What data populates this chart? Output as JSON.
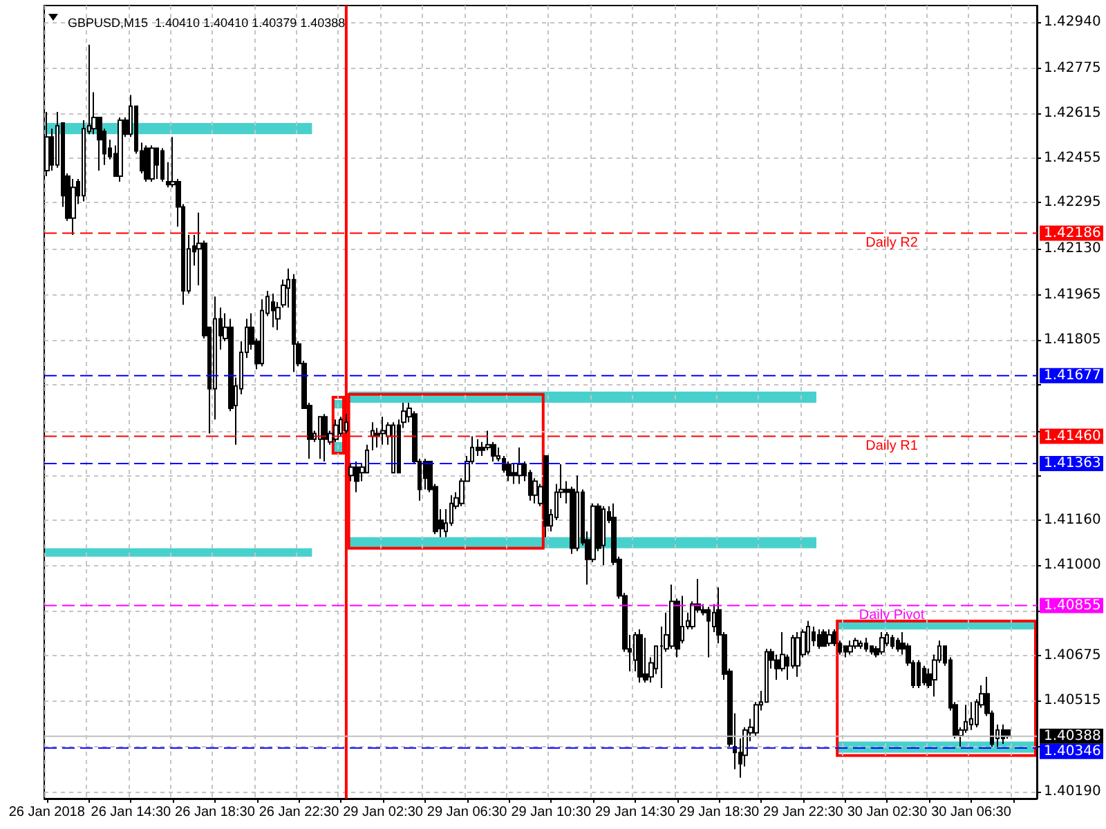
{
  "chart_data": {
    "type": "candlestick",
    "title": "GBPUSD,M15  1.40410 1.40410 1.40379 1.40388",
    "categories": [
      "26 Jan 2018",
      null,
      null,
      null,
      null,
      null,
      null,
      null,
      null,
      null,
      null,
      null,
      null,
      null,
      null,
      null,
      "26 Jan 14:30",
      null,
      null,
      null,
      null,
      null,
      null,
      null,
      null,
      null,
      null,
      null,
      null,
      null,
      null,
      null,
      "26 Jan 18:30",
      null,
      null,
      null,
      null,
      null,
      null,
      null,
      null,
      null,
      null,
      null,
      null,
      null,
      null,
      null,
      "26 Jan 22:30",
      null,
      null,
      null,
      null,
      null,
      null,
      null,
      null,
      null,
      null,
      null,
      null,
      null,
      null,
      null,
      "29 Jan 02:30",
      null,
      null,
      null,
      null,
      null,
      null,
      null,
      null,
      null,
      null,
      null,
      null,
      null,
      null,
      null,
      "29 Jan 06:30",
      null,
      null,
      null,
      null,
      null,
      null,
      null,
      null,
      null,
      null,
      null,
      null,
      null,
      null,
      null,
      "29 Jan 10:30",
      null,
      null,
      null,
      null,
      null,
      null,
      null,
      null,
      null,
      null,
      null,
      null,
      null,
      null,
      null,
      "29 Jan 14:30",
      null,
      null,
      null,
      null,
      null,
      null,
      null,
      null,
      null,
      null,
      null,
      null,
      null,
      null,
      null,
      "29 Jan 18:30",
      null,
      null,
      null,
      null,
      null,
      null,
      null,
      null,
      null,
      null,
      null,
      null,
      null,
      null,
      null,
      "29 Jan 22:30",
      null,
      null,
      null,
      null,
      null,
      null,
      null,
      null,
      null,
      null,
      null,
      null,
      null,
      null,
      null,
      "30 Jan 02:30",
      null,
      null,
      null,
      null,
      null,
      null,
      null,
      null,
      null,
      null,
      null,
      null,
      null,
      null,
      null,
      "30 Jan 06:30",
      null,
      null,
      null,
      null,
      null,
      null,
      null,
      null,
      null,
      null,
      null,
      null
    ],
    "series": [
      {
        "type": "bar",
        "color": "#ff0000",
        "values": [
          null,
          null,
          null,
          null,
          null,
          null,
          null,
          null,
          null,
          null,
          null,
          null,
          null,
          null,
          null,
          null,
          null,
          null,
          null,
          null,
          null,
          null,
          null,
          null,
          null,
          null,
          null,
          null,
          null,
          null,
          null,
          null,
          null,
          null,
          null,
          null,
          null,
          null,
          null,
          null,
          null,
          null,
          null,
          null,
          null,
          null,
          null,
          null,
          null,
          null,
          null,
          null,
          null,
          null,
          null,
          null,
          null,
          0.02835,
          null,
          null,
          null,
          null,
          null,
          null,
          null,
          null,
          null,
          null,
          null,
          null,
          null,
          null,
          null,
          null,
          null,
          null,
          null,
          null,
          null,
          null,
          null,
          null,
          null,
          null,
          null,
          null,
          null,
          null,
          null,
          null,
          null,
          null,
          null,
          null,
          null,
          null,
          null,
          null,
          null,
          null,
          null,
          null,
          null,
          null,
          null,
          null,
          null,
          null,
          null,
          null,
          null,
          null,
          null,
          null,
          null,
          null,
          null,
          null,
          null,
          null,
          null,
          null,
          null,
          null,
          null,
          null,
          null,
          null,
          null,
          null,
          null,
          null,
          null,
          null,
          null,
          null,
          null,
          null,
          null,
          null,
          null,
          null,
          null,
          null,
          null,
          null,
          null,
          null,
          null,
          null,
          null,
          null,
          null,
          null,
          null,
          null,
          null,
          null,
          null,
          null,
          null,
          null,
          null,
          null,
          null,
          null,
          null,
          null,
          null,
          null,
          null,
          null,
          null,
          null,
          null,
          null,
          null,
          null,
          null,
          null,
          null,
          null,
          null,
          null,
          null,
          null,
          null,
          null,
          null
        ],
        "base": [
          null,
          null,
          null,
          null,
          null,
          null,
          null,
          null,
          null,
          null,
          null,
          null,
          null,
          null,
          null,
          null,
          null,
          null,
          null,
          null,
          null,
          null,
          null,
          null,
          null,
          null,
          null,
          null,
          null,
          null,
          null,
          null,
          null,
          null,
          null,
          null,
          null,
          null,
          null,
          null,
          null,
          null,
          null,
          null,
          null,
          null,
          null,
          null,
          null,
          null,
          null,
          null,
          null,
          null,
          null,
          null,
          null,
          1.40165,
          null,
          null,
          null,
          null,
          null,
          null,
          null,
          null,
          null,
          null,
          null,
          null,
          null,
          null,
          null,
          null,
          null,
          null,
          null,
          null,
          null,
          null,
          null,
          null,
          null,
          null,
          null,
          null,
          null,
          null,
          null,
          null,
          null,
          null,
          null,
          null,
          null,
          null,
          null,
          null,
          null,
          null,
          null,
          null,
          null,
          null,
          null,
          null,
          null,
          null,
          null,
          null,
          null,
          null,
          null,
          null,
          null,
          null,
          null,
          null,
          null,
          null,
          null,
          null,
          null,
          null,
          null,
          null,
          null,
          null,
          null,
          null,
          null,
          null,
          null,
          null,
          null,
          null,
          null,
          null,
          null,
          null,
          null,
          null,
          null,
          null,
          null,
          null,
          null,
          null,
          null,
          null,
          null,
          null,
          null,
          null,
          null,
          null,
          null,
          null,
          null,
          null,
          null,
          null,
          null,
          null,
          null,
          null,
          null,
          null,
          null,
          null,
          null,
          null,
          null,
          null,
          null,
          null,
          null,
          null,
          null,
          null,
          null,
          null,
          null,
          null,
          null,
          null,
          null,
          null,
          null
        ]
      },
      {
        "color": "#000000",
        "ohlc": [
          [
            1.4241,
            1.4262,
            1.4239,
            1.4253
          ],
          [
            1.4253,
            1.4256,
            1.4241,
            1.4243
          ],
          [
            1.4243,
            1.4262,
            1.4242,
            1.4257
          ],
          [
            1.4258,
            1.4258,
            1.4228,
            1.4232
          ],
          [
            1.4239,
            1.424,
            1.4223,
            1.4224
          ],
          [
            1.4224,
            1.4238,
            1.4218,
            1.4235
          ],
          [
            1.4237,
            1.4238,
            1.4229,
            1.4232
          ],
          [
            1.4232,
            1.4259,
            1.423,
            1.4256
          ],
          [
            1.4255,
            1.4286,
            1.4254,
            1.4257
          ],
          [
            1.4256,
            1.4269,
            1.4254,
            1.426
          ],
          [
            1.426,
            1.426,
            1.4241,
            1.4252
          ],
          [
            1.4255,
            1.4256,
            1.4243,
            1.4247
          ],
          [
            1.4249,
            1.4252,
            1.4245,
            1.4246
          ],
          [
            1.4247,
            1.425,
            1.4239,
            1.4239
          ],
          [
            1.4239,
            1.426,
            1.4237,
            1.4259
          ],
          [
            1.4259,
            1.426,
            1.4253,
            1.4254
          ],
          [
            1.4254,
            1.4268,
            1.4253,
            1.4264
          ],
          [
            1.4264,
            1.4264,
            1.4247,
            1.4248
          ],
          [
            1.4248,
            1.4251,
            1.424,
            1.4241
          ],
          [
            1.4249,
            1.425,
            1.4237,
            1.4238
          ],
          [
            1.4238,
            1.425,
            1.4237,
            1.4249
          ],
          [
            1.4249,
            1.4249,
            1.4238,
            1.4243
          ],
          [
            1.4248,
            1.4249,
            1.4237,
            1.4238
          ],
          [
            1.4237,
            1.4244,
            1.4235,
            1.4236
          ],
          [
            1.4236,
            1.4253,
            1.4235,
            1.4237
          ],
          [
            1.4237,
            1.4238,
            1.4221,
            1.4228
          ],
          [
            1.4228,
            1.4229,
            1.4193,
            1.4198
          ],
          [
            1.4198,
            1.4218,
            1.4197,
            1.4213
          ],
          [
            1.4214,
            1.4218,
            1.4207,
            1.4212
          ],
          [
            1.4213,
            1.4226,
            1.42,
            1.4215
          ],
          [
            1.4215,
            1.4216,
            1.4181,
            1.4182
          ],
          [
            1.4185,
            1.4185,
            1.4147,
            1.4163
          ],
          [
            1.4163,
            1.4196,
            1.4152,
            1.4188
          ],
          [
            1.4188,
            1.4192,
            1.4177,
            1.4182
          ],
          [
            1.4181,
            1.419,
            1.418,
            1.4185
          ],
          [
            1.4185,
            1.4188,
            1.4155,
            1.4156
          ],
          [
            1.4157,
            1.4167,
            1.4143,
            1.4164
          ],
          [
            1.4163,
            1.418,
            1.4161,
            1.4176
          ],
          [
            1.4176,
            1.4188,
            1.4174,
            1.4185
          ],
          [
            1.4185,
            1.419,
            1.4177,
            1.4179
          ],
          [
            1.418,
            1.4181,
            1.417,
            1.4172
          ],
          [
            1.4172,
            1.4195,
            1.4171,
            1.4191
          ],
          [
            1.419,
            1.4198,
            1.4189,
            1.4196
          ],
          [
            1.4194,
            1.4197,
            1.4185,
            1.4191
          ],
          [
            1.4188,
            1.4194,
            1.4184,
            1.4192
          ],
          [
            1.4193,
            1.4202,
            1.4192,
            1.42
          ],
          [
            1.4199,
            1.4206,
            1.4192,
            1.4202
          ],
          [
            1.4202,
            1.4204,
            1.4169,
            1.4179
          ],
          [
            1.4179,
            1.418,
            1.4171,
            1.4172
          ],
          [
            1.4172,
            1.4173,
            1.4156,
            1.4156
          ],
          [
            1.4157,
            1.4158,
            1.4138,
            1.4145
          ],
          [
            1.4145,
            1.4148,
            1.4144,
            1.4147
          ],
          [
            1.4145,
            1.4153,
            1.4138,
            1.4153
          ],
          [
            1.4153,
            1.4154,
            1.4137,
            1.4145
          ],
          [
            1.4144,
            1.4148,
            1.4143,
            1.4147
          ],
          [
            1.4145,
            1.4152,
            1.4144,
            1.415
          ],
          [
            1.4147,
            1.4153,
            1.4146,
            1.4152
          ],
          [
            1.4148,
            1.4154,
            1.4147,
            1.4151
          ],
          [
            1.4132,
            1.4136,
            1.413,
            1.4135
          ],
          [
            1.4135,
            1.4137,
            1.4126,
            1.413
          ],
          [
            1.4133,
            1.4136,
            1.413,
            1.4135
          ],
          [
            1.4133,
            1.4143,
            1.4133,
            1.4141
          ],
          [
            1.4146,
            1.4151,
            1.4141,
            1.4148
          ],
          [
            1.4147,
            1.4149,
            1.4142,
            1.4146
          ],
          [
            1.4147,
            1.4153,
            1.4143,
            1.4148
          ],
          [
            1.4146,
            1.4151,
            1.4143,
            1.415
          ],
          [
            1.4133,
            1.4151,
            1.4133,
            1.415
          ],
          [
            1.415,
            1.4152,
            1.4133,
            1.4133
          ],
          [
            1.4151,
            1.4158,
            1.4149,
            1.4155
          ],
          [
            1.4153,
            1.4158,
            1.4151,
            1.4156
          ],
          [
            1.4154,
            1.4155,
            1.4136,
            1.4137
          ],
          [
            1.4137,
            1.4138,
            1.4123,
            1.4127
          ],
          [
            1.4137,
            1.4138,
            1.4127,
            1.4131
          ],
          [
            1.4137,
            1.4137,
            1.4126,
            1.4127
          ],
          [
            1.4128,
            1.4129,
            1.4111,
            1.4112
          ],
          [
            1.4116,
            1.412,
            1.411,
            1.4113
          ],
          [
            1.4112,
            1.412,
            1.411,
            1.4115
          ],
          [
            1.4115,
            1.4125,
            1.4114,
            1.4122
          ],
          [
            1.4121,
            1.4126,
            1.412,
            1.4124
          ],
          [
            1.4122,
            1.4131,
            1.4121,
            1.413
          ],
          [
            1.413,
            1.4139,
            1.413,
            1.4137
          ],
          [
            1.4137,
            1.4146,
            1.4136,
            1.4142
          ],
          [
            1.4142,
            1.4145,
            1.4139,
            1.4141
          ],
          [
            1.4142,
            1.4144,
            1.4139,
            1.4141
          ],
          [
            1.4142,
            1.4148,
            1.4141,
            1.4143
          ],
          [
            1.4143,
            1.4144,
            1.4137,
            1.4139
          ],
          [
            1.4138,
            1.4142,
            1.4137,
            1.4139
          ],
          [
            1.4138,
            1.4139,
            1.4133,
            1.4134
          ],
          [
            1.4136,
            1.4137,
            1.413,
            1.4132
          ],
          [
            1.4133,
            1.4136,
            1.4129,
            1.4132
          ],
          [
            1.4132,
            1.4142,
            1.4129,
            1.4136
          ],
          [
            1.4136,
            1.4137,
            1.413,
            1.4132
          ],
          [
            1.4133,
            1.4134,
            1.4123,
            1.4125
          ],
          [
            1.4125,
            1.4131,
            1.4122,
            1.413
          ],
          [
            1.4122,
            1.4129,
            1.4121,
            1.4128
          ],
          [
            1.4139,
            1.4139,
            1.411,
            1.4114
          ],
          [
            1.4114,
            1.412,
            1.4112,
            1.4118
          ],
          [
            1.4117,
            1.4129,
            1.4116,
            1.4126
          ],
          [
            1.4126,
            1.4136,
            1.4124,
            1.4127
          ],
          [
            1.4127,
            1.413,
            1.4122,
            1.4126
          ],
          [
            1.4127,
            1.4128,
            1.4104,
            1.4106
          ],
          [
            1.4106,
            1.4132,
            1.4105,
            1.4126
          ],
          [
            1.4126,
            1.4127,
            1.4107,
            1.4108
          ],
          [
            1.4109,
            1.4112,
            1.4093,
            1.4102
          ],
          [
            1.4102,
            1.4122,
            1.4101,
            1.4121
          ],
          [
            1.4121,
            1.4122,
            1.4105,
            1.4106
          ],
          [
            1.4107,
            1.4121,
            1.41,
            1.412
          ],
          [
            1.4119,
            1.4121,
            1.4115,
            1.4116
          ],
          [
            1.4117,
            1.4122,
            1.41,
            1.4101
          ],
          [
            1.4102,
            1.4103,
            1.4088,
            1.4089
          ],
          [
            1.4089,
            1.409,
            1.4069,
            1.407
          ],
          [
            1.407,
            1.4075,
            1.4062,
            1.4069
          ],
          [
            1.4066,
            1.4076,
            1.4062,
            1.4075
          ],
          [
            1.4075,
            1.4077,
            1.4058,
            1.406
          ],
          [
            1.4061,
            1.4074,
            1.4058,
            1.4059
          ],
          [
            1.406,
            1.4067,
            1.4058,
            1.4065
          ],
          [
            1.4063,
            1.4071,
            1.4061,
            1.4071
          ],
          [
            1.4071,
            1.4078,
            1.4056,
            1.4071
          ],
          [
            1.407,
            1.4083,
            1.4069,
            1.4075
          ],
          [
            1.4071,
            1.4093,
            1.407,
            1.4087
          ],
          [
            1.4087,
            1.4088,
            1.4067,
            1.407
          ],
          [
            1.4073,
            1.4089,
            1.4072,
            1.4078
          ],
          [
            1.4078,
            1.4083,
            1.4077,
            1.408
          ],
          [
            1.4078,
            1.4087,
            1.4077,
            1.4086
          ],
          [
            1.4086,
            1.4095,
            1.4083,
            1.4084
          ],
          [
            1.4084,
            1.4086,
            1.4082,
            1.4083
          ],
          [
            1.4084,
            1.4085,
            1.4067,
            1.408
          ],
          [
            1.4078,
            1.4086,
            1.4076,
            1.4083
          ],
          [
            1.4084,
            1.4092,
            1.4072,
            1.4075
          ],
          [
            1.4075,
            1.4076,
            1.4059,
            1.4061
          ],
          [
            1.4062,
            1.4063,
            1.4035,
            1.4036
          ],
          [
            1.4035,
            1.4047,
            1.4027,
            1.4033
          ],
          [
            1.4033,
            1.4038,
            1.4024,
            1.4029
          ],
          [
            1.4032,
            1.4042,
            1.4028,
            1.4041
          ],
          [
            1.404,
            1.4045,
            1.4037,
            1.4042
          ],
          [
            1.404,
            1.4051,
            1.4039,
            1.405
          ],
          [
            1.405,
            1.4055,
            1.4048,
            1.4051
          ],
          [
            1.4051,
            1.407,
            1.4051,
            1.4069
          ],
          [
            1.4069,
            1.407,
            1.4063,
            1.4066
          ],
          [
            1.4066,
            1.4068,
            1.4059,
            1.4063
          ],
          [
            1.4063,
            1.4076,
            1.4062,
            1.4068
          ],
          [
            1.4067,
            1.4068,
            1.4059,
            1.4064
          ],
          [
            1.4064,
            1.4075,
            1.4063,
            1.4074
          ],
          [
            1.4064,
            1.4076,
            1.406,
            1.4074
          ],
          [
            1.4068,
            1.4077,
            1.4067,
            1.4076
          ],
          [
            1.4069,
            1.408,
            1.4068,
            1.4078
          ],
          [
            1.4076,
            1.4078,
            1.4071,
            1.4073
          ],
          [
            1.4075,
            1.4077,
            1.407,
            1.4071
          ],
          [
            1.4076,
            1.4077,
            1.4071,
            1.4071
          ],
          [
            1.4072,
            1.4077,
            1.4071,
            1.4075
          ],
          [
            1.4076,
            1.4077,
            1.4071,
            1.4072
          ],
          [
            1.4072,
            1.4073,
            1.4068,
            1.4069
          ],
          [
            1.4071,
            1.4071,
            1.4067,
            1.4069
          ],
          [
            1.4069,
            1.4073,
            1.4068,
            1.4071
          ],
          [
            1.4071,
            1.4074,
            1.407,
            1.4073
          ],
          [
            1.4071,
            1.4073,
            1.407,
            1.4072
          ],
          [
            1.4072,
            1.4074,
            1.4069,
            1.407
          ],
          [
            1.4071,
            1.4071,
            1.4068,
            1.4069
          ],
          [
            1.407,
            1.4071,
            1.4067,
            1.4068
          ],
          [
            1.4069,
            1.4076,
            1.4068,
            1.4074
          ],
          [
            1.4072,
            1.4076,
            1.4071,
            1.4075
          ],
          [
            1.4074,
            1.4075,
            1.407,
            1.4071
          ],
          [
            1.4073,
            1.4074,
            1.4069,
            1.407
          ],
          [
            1.4072,
            1.4076,
            1.4068,
            1.407
          ],
          [
            1.4071,
            1.4072,
            1.4064,
            1.4065
          ],
          [
            1.4065,
            1.4066,
            1.4056,
            1.4057
          ],
          [
            1.4065,
            1.4066,
            1.4056,
            1.4057
          ],
          [
            1.4063,
            1.4064,
            1.4057,
            1.4058
          ],
          [
            1.4061,
            1.4063,
            1.4056,
            1.4057
          ],
          [
            1.4059,
            1.4068,
            1.4053,
            1.4066
          ],
          [
            1.4066,
            1.4073,
            1.4065,
            1.4071
          ],
          [
            1.4071,
            1.4071,
            1.4064,
            1.4065
          ],
          [
            1.4066,
            1.4067,
            1.4048,
            1.4049
          ],
          [
            1.405,
            1.4051,
            1.4038,
            1.4039
          ],
          [
            1.4039,
            1.4042,
            1.4035,
            1.4041
          ],
          [
            1.4041,
            1.405,
            1.404,
            1.4044
          ],
          [
            1.4043,
            1.4051,
            1.4041,
            1.4045
          ],
          [
            1.4043,
            1.4052,
            1.4042,
            1.4051
          ],
          [
            1.405,
            1.4057,
            1.4049,
            1.4054
          ],
          [
            1.4054,
            1.406,
            1.4046,
            1.4047
          ],
          [
            1.4047,
            1.4048,
            1.4035,
            1.4036
          ],
          [
            1.4038,
            1.4043,
            1.4035,
            1.4041
          ],
          [
            1.4041,
            1.4043,
            1.4036,
            1.4038
          ],
          [
            1.4041,
            1.4041,
            1.40379,
            1.40388
          ],
          null,
          null,
          null,
          null,
          null
        ]
      }
    ],
    "ylim": [
      1.40165,
      1.43
    ],
    "yticks": [
      {
        "value": 1.4294,
        "label": "1.42940"
      },
      {
        "value": 1.42775,
        "label": "1.42775"
      },
      {
        "value": 1.42615,
        "label": "1.42615"
      },
      {
        "value": 1.42455,
        "label": "1.42455"
      },
      {
        "value": 1.42295,
        "label": "1.42295"
      },
      {
        "value": 1.4213,
        "label": "1.42130"
      },
      {
        "value": 1.41965,
        "label": "1.41965"
      },
      {
        "value": 1.41805,
        "label": "1.41805"
      },
      {
        "value": 1.41645,
        "label": null
      },
      {
        "value": 1.4148,
        "label": null
      },
      {
        "value": 1.4132,
        "label": null
      },
      {
        "value": 1.4116,
        "label": "1.41160"
      },
      {
        "value": 1.41,
        "label": "1.41000"
      },
      {
        "value": 1.40835,
        "label": null
      },
      {
        "value": 1.40675,
        "label": "1.40675"
      },
      {
        "value": 1.40515,
        "label": "1.40515"
      },
      {
        "value": 1.4035,
        "label": null
      },
      {
        "value": 1.4019,
        "label": "1.40190"
      }
    ],
    "grid": true,
    "ref_lines": [
      {
        "axis": "y",
        "value": 1.42186,
        "label": "Daily R2",
        "color": "#ff0000",
        "line_style": "dashed"
      },
      {
        "axis": "y",
        "value": 1.41677,
        "color": "#0000ff",
        "line_style": "dashed"
      },
      {
        "axis": "y",
        "value": 1.4146,
        "label": "Daily R1",
        "color": "#ff0000",
        "line_style": "dashed"
      },
      {
        "axis": "y",
        "value": 1.41363,
        "color": "#0000ff",
        "line_style": "dashed"
      },
      {
        "axis": "y",
        "value": 1.40855,
        "label": "Daily Pivot",
        "color": "#ff00ff",
        "line_style": "dashed"
      },
      {
        "axis": "y",
        "value": 1.40388,
        "color": "#c0c0c0",
        "line_style": "solid"
      },
      {
        "axis": "y",
        "value": 1.40346,
        "color": "#0000ff",
        "line_style": "dashed"
      }
    ],
    "annotations": [
      "1.42186",
      "1.41677",
      "1.41460",
      "1.41363",
      "1.40855",
      "1.40388",
      "1.40346"
    ]
  }
}
